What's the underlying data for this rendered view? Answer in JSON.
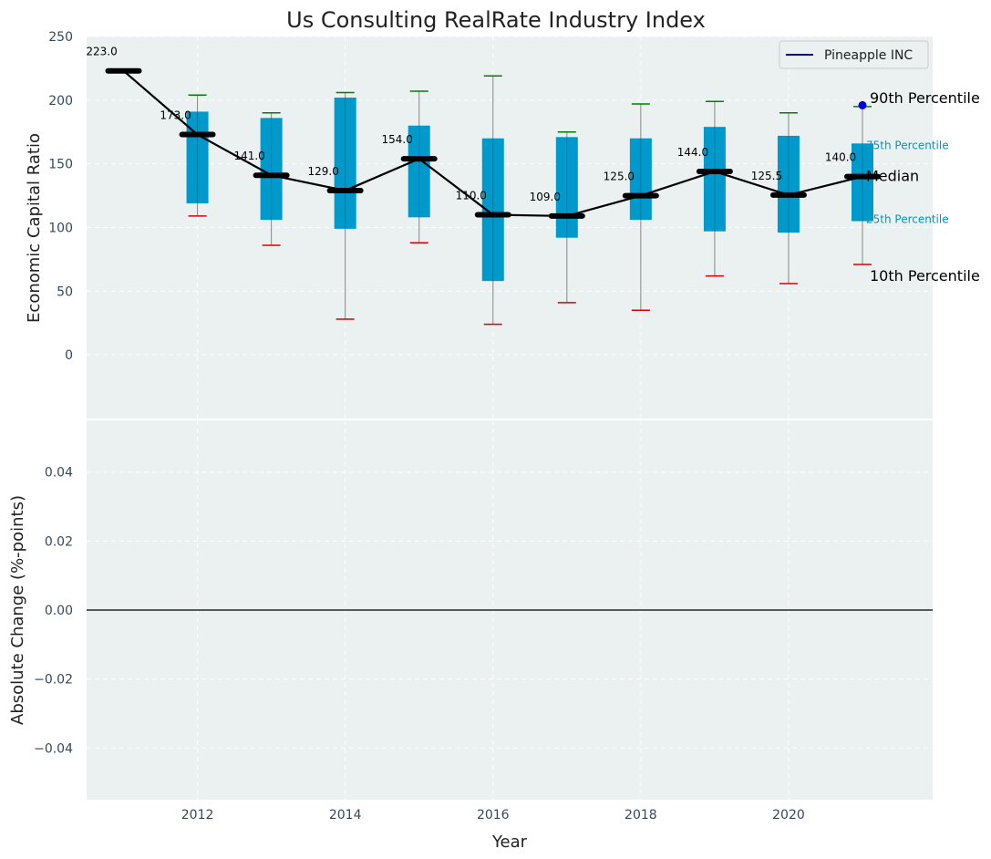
{
  "chart_data": {
    "type": "box",
    "title": "Us Consulting RealRate Industry Index",
    "years": [
      2011,
      2012,
      2013,
      2014,
      2015,
      2016,
      2017,
      2018,
      2019,
      2020,
      2021
    ],
    "top_panel": {
      "ylabel": "Economic Capital Ratio",
      "ylim": [
        -50,
        250
      ],
      "yticks": [
        0,
        50,
        100,
        150,
        200,
        250
      ],
      "median_series": [
        223.0,
        173.0,
        141.0,
        129.0,
        154.0,
        110.0,
        109.0,
        125.0,
        144.0,
        125.5,
        140.0
      ],
      "median_labels": [
        "223.0",
        "173.0",
        "141.0",
        "129.0",
        "154.0",
        "110.0",
        "109.0",
        "125.0",
        "144.0",
        "125.5",
        "140.0"
      ],
      "boxes": [
        {
          "year": 2012,
          "p10": 109,
          "p25": 119,
          "p75": 191,
          "p90": 204
        },
        {
          "year": 2013,
          "p10": 86,
          "p25": 106,
          "p75": 186,
          "p90": 190
        },
        {
          "year": 2014,
          "p10": 28,
          "p25": 99,
          "p75": 202,
          "p90": 206
        },
        {
          "year": 2015,
          "p10": 88,
          "p25": 108,
          "p75": 180,
          "p90": 207
        },
        {
          "year": 2016,
          "p10": 24,
          "p25": 58,
          "p75": 170,
          "p90": 219
        },
        {
          "year": 2017,
          "p10": 41,
          "p25": 92,
          "p75": 171,
          "p90": 175
        },
        {
          "year": 2018,
          "p10": 35,
          "p25": 106,
          "p75": 170,
          "p90": 197
        },
        {
          "year": 2019,
          "p10": 62,
          "p25": 97,
          "p75": 179,
          "p90": 199
        },
        {
          "year": 2020,
          "p10": 56,
          "p25": 96,
          "p75": 172,
          "p90": 190
        },
        {
          "year": 2021,
          "p10": 71,
          "p25": 105,
          "p75": 166,
          "p90": 195
        }
      ],
      "company_points": [
        {
          "year": 2021,
          "value": 196
        }
      ],
      "legend": {
        "label": "Pineapple INC",
        "placement": "top-right"
      },
      "annotations": {
        "p90": "90th Percentile",
        "p75": "75th Percentile",
        "median": "Median",
        "p25": "25th Percentile",
        "p10": "10th Percentile"
      }
    },
    "bottom_panel": {
      "ylabel": "Absolute Change (%-points)",
      "xlabel": "Year",
      "ylim": [
        -0.055,
        0.055
      ],
      "yticks": [
        "0.04",
        "0.02",
        "0.00",
        "−0.02",
        "−0.04"
      ],
      "ytick_values": [
        0.04,
        0.02,
        0.0,
        -0.02,
        -0.04
      ],
      "xticks": [
        "2012",
        "2014",
        "2016",
        "2018",
        "2020"
      ],
      "xtick_values": [
        2012,
        2014,
        2016,
        2018,
        2020
      ],
      "xlim": [
        2010.5,
        2021.95
      ]
    },
    "colors": {
      "panel_bg": "#ebf0f0",
      "box": "#0099cc",
      "median_line": "#000000",
      "whisker_top": "#008000",
      "whisker_bottom": "#dd0000",
      "company": "#0000dd",
      "annotation_small": "#0099bb"
    }
  }
}
